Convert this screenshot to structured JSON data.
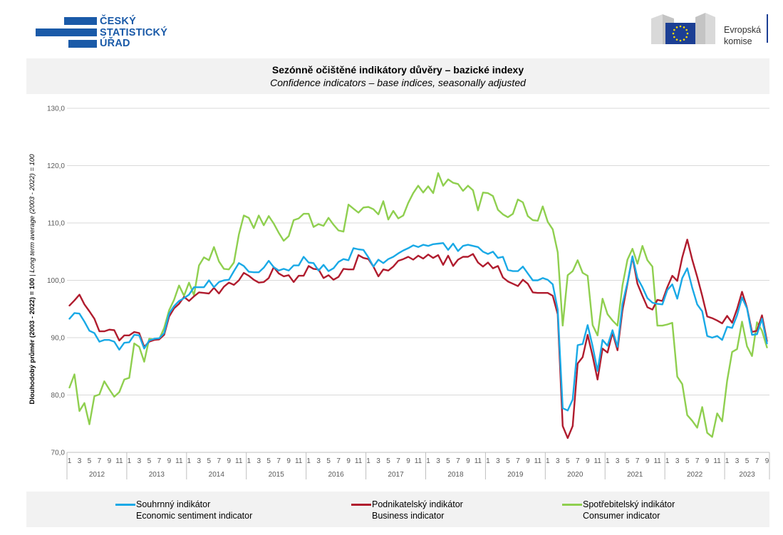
{
  "header": {
    "csu_logo_lines": [
      "ČESKÝ",
      "STATISTICKÝ",
      "ÚŘAD"
    ],
    "ec_logo_lines": [
      "Evropská",
      "komise"
    ]
  },
  "title": {
    "main": "Sezónně očištěné indikátory důvěry – bazické indexy",
    "sub": "Confidence indicators – base indices, seasonally adjusted"
  },
  "legend": {
    "items": [
      {
        "line1": "Souhrnný indikátor",
        "line2": "Economic sentiment indicator",
        "color": "#19a9e6"
      },
      {
        "line1": "Podnikatelský indikátor",
        "line2": "Business indicator",
        "color": "#b01c2e"
      },
      {
        "line1": "Spotřebitelský indikátor",
        "line2": "Consumer indicator",
        "color": "#8fcf4f"
      }
    ]
  },
  "chart_data": {
    "type": "line",
    "ylabel_main": "Dlouhodobý průměr (2003 - 2022) = 100",
    "ylabel_sep": " | ",
    "ylabel_italic": "Long term average (2003 - 2022) = 100",
    "ylim": [
      70,
      130
    ],
    "yticks": [
      "70,0",
      "80,0",
      "90,0",
      "100,0",
      "110,0",
      "120,0",
      "130,0"
    ],
    "years": [
      "2012",
      "2013",
      "2014",
      "2015",
      "2016",
      "2017",
      "2018",
      "2019",
      "2020",
      "2021",
      "2022",
      "2023"
    ],
    "month_ticks": [
      "1",
      "3",
      "5",
      "7",
      "9",
      "11"
    ],
    "last_year_month_ticks": [
      "1",
      "3",
      "5",
      "7",
      "9"
    ],
    "x_start": "2012-01",
    "x_end": "2023-09",
    "grid": true,
    "legend_position": "bottom",
    "series": [
      {
        "key": "economic",
        "color": "#19a9e6",
        "values": [
          93.3,
          94.3,
          94.2,
          92.8,
          91.2,
          90.8,
          89.3,
          89.6,
          89.6,
          89.3,
          87.9,
          89.1,
          89.2,
          90.5,
          90.4,
          88.1,
          89.5,
          89.8,
          89.9,
          90.8,
          94.2,
          95.5,
          96.4,
          96.9,
          97.5,
          98.8,
          98.8,
          98.8,
          100.0,
          98.8,
          99.7,
          100.0,
          100.1,
          101.6,
          103.0,
          102.5,
          101.5,
          101.4,
          101.4,
          102.2,
          103.4,
          102.3,
          101.7,
          102.0,
          101.7,
          102.6,
          102.6,
          104.1,
          103.1,
          103.0,
          101.7,
          102.7,
          101.6,
          102.1,
          103.2,
          103.7,
          103.5,
          105.6,
          105.4,
          105.3,
          104.0,
          102.4,
          103.6,
          103.0,
          103.7,
          104.1,
          104.7,
          105.2,
          105.6,
          106.1,
          105.8,
          106.2,
          106.0,
          106.3,
          106.4,
          106.5,
          105.3,
          106.4,
          105.1,
          106.0,
          106.2,
          106.0,
          105.8,
          105.0,
          104.6,
          105.0,
          103.9,
          104.1,
          101.8,
          101.6,
          101.6,
          102.4,
          101.2,
          100.0,
          100.0,
          100.4,
          100.1,
          99.3,
          94.9,
          77.7,
          77.3,
          79.2,
          88.7,
          88.9,
          92.2,
          88.5,
          84.2,
          89.6,
          88.6,
          91.3,
          88.4,
          95.9,
          99.6,
          104.2,
          100.4,
          98.8,
          96.9,
          96.1,
          95.9,
          95.8,
          98.3,
          99.3,
          96.8,
          100.4,
          102.1,
          98.7,
          95.8,
          94.6,
          90.3,
          90.0,
          90.3,
          89.6,
          91.9,
          91.7,
          93.9,
          97.0,
          95.1,
          90.5,
          90.6,
          93.3,
          89.0
        ]
      },
      {
        "key": "business",
        "color": "#b01c2e",
        "values": [
          95.6,
          96.5,
          97.5,
          95.8,
          94.6,
          93.3,
          91.1,
          91.1,
          91.4,
          91.3,
          89.5,
          90.4,
          90.4,
          91.0,
          90.8,
          88.4,
          89.3,
          89.6,
          89.7,
          90.5,
          93.7,
          95.1,
          95.9,
          97.1,
          96.4,
          97.2,
          97.9,
          97.8,
          97.7,
          98.7,
          97.7,
          98.9,
          99.6,
          99.2,
          100.0,
          101.3,
          100.8,
          100.1,
          99.6,
          99.7,
          100.4,
          102.3,
          101.2,
          100.7,
          100.9,
          99.7,
          100.8,
          100.8,
          102.5,
          102.0,
          101.9,
          100.4,
          100.9,
          100.1,
          100.6,
          102.0,
          101.9,
          101.9,
          104.4,
          103.9,
          103.7,
          102.4,
          100.7,
          101.9,
          101.7,
          102.4,
          103.4,
          103.7,
          104.1,
          103.6,
          104.3,
          103.8,
          104.5,
          103.9,
          104.4,
          102.7,
          104.3,
          102.5,
          103.6,
          104.1,
          104.1,
          104.6,
          103.1,
          102.4,
          103.1,
          102.1,
          102.5,
          100.5,
          99.8,
          99.4,
          99.0,
          100.1,
          99.4,
          97.9,
          97.8,
          97.8,
          97.8,
          97.3,
          94.1,
          74.6,
          72.5,
          74.6,
          85.5,
          86.6,
          90.5,
          86.8,
          82.7,
          88.1,
          87.4,
          90.9,
          87.8,
          94.8,
          99.4,
          104.1,
          99.4,
          97.3,
          95.3,
          94.9,
          96.6,
          96.4,
          98.8,
          100.8,
          99.9,
          104.0,
          107.1,
          103.6,
          100.6,
          97.3,
          93.7,
          93.4,
          93.0,
          92.5,
          93.8,
          92.6,
          95.0,
          98.0,
          95.2,
          91.0,
          91.2,
          93.9,
          89.4
        ]
      },
      {
        "key": "consumer",
        "color": "#8fcf4f",
        "values": [
          81.3,
          83.6,
          77.2,
          78.6,
          74.9,
          79.8,
          80.1,
          82.4,
          81.0,
          79.7,
          80.5,
          82.7,
          83.0,
          89.0,
          88.4,
          85.8,
          89.8,
          89.7,
          89.7,
          91.7,
          94.8,
          96.6,
          99.1,
          97.3,
          99.6,
          97.4,
          102.6,
          104.0,
          103.5,
          105.8,
          103.3,
          102.0,
          101.9,
          103.1,
          108.0,
          111.3,
          110.9,
          109.1,
          111.3,
          109.6,
          111.2,
          109.9,
          108.3,
          106.9,
          107.7,
          110.5,
          110.8,
          111.6,
          111.6,
          109.3,
          109.8,
          109.5,
          110.9,
          109.7,
          108.7,
          108.5,
          113.2,
          112.5,
          111.8,
          112.7,
          112.8,
          112.4,
          111.5,
          113.8,
          110.6,
          112.1,
          110.8,
          111.3,
          113.5,
          115.2,
          116.5,
          115.3,
          116.4,
          115.2,
          118.7,
          116.5,
          117.6,
          117.0,
          116.8,
          115.6,
          116.5,
          115.7,
          112.2,
          115.3,
          115.2,
          114.7,
          112.3,
          111.5,
          111.0,
          111.6,
          114.1,
          113.6,
          111.2,
          110.5,
          110.4,
          112.9,
          110.2,
          108.9,
          104.9,
          92.1,
          100.9,
          101.6,
          103.5,
          101.3,
          100.8,
          92.2,
          90.4,
          96.8,
          94.1,
          93.0,
          92.1,
          99.1,
          103.6,
          105.5,
          102.9,
          106.0,
          103.5,
          102.4,
          92.1,
          92.1,
          92.3,
          92.6,
          83.2,
          81.9,
          76.5,
          75.5,
          74.3,
          77.9,
          73.4,
          72.7,
          76.8,
          75.4,
          82.5,
          87.5,
          88.0,
          92.8,
          88.5,
          86.8,
          92.7,
          91.2,
          88.3
        ]
      }
    ]
  }
}
